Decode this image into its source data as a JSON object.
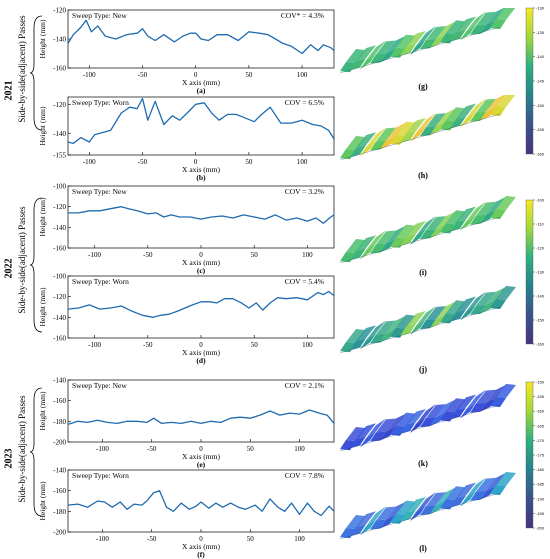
{
  "years": [
    "2021",
    "2022",
    "2023"
  ],
  "side_label": "Side-by-side(adjacent) Passes",
  "x_axis_label": "X axis (mm)",
  "y_axis_label": "Height (mm)",
  "panels": [
    {
      "year": "2021",
      "label": "(a)",
      "sweep": "Sweep Type: New",
      "cov": "COV* = 4.3%",
      "ylim": [
        -160,
        -120
      ],
      "yticks": [
        -120,
        -140,
        -160
      ],
      "xlim": [
        -120,
        130
      ],
      "xticks": [
        -100,
        -50,
        0,
        50,
        100
      ],
      "x": [
        -125,
        -115,
        -108,
        -103,
        -98,
        -92,
        -85,
        -75,
        -65,
        -55,
        -50,
        -45,
        -38,
        -30,
        -20,
        -12,
        -5,
        0,
        5,
        12,
        20,
        30,
        40,
        50,
        60,
        68,
        75,
        82,
        90,
        100,
        108,
        115,
        120,
        127,
        132
      ],
      "y": [
        -143,
        -137,
        -132,
        -127,
        -135,
        -131,
        -138,
        -140,
        -137,
        -136,
        -133,
        -138,
        -141,
        -137,
        -142,
        -138,
        -136,
        -136,
        -140,
        -141,
        -137,
        -137,
        -141,
        -135,
        -136,
        -137,
        -140,
        -143,
        -145,
        -150,
        -144,
        -148,
        -144,
        -146,
        -148
      ]
    },
    {
      "year": "2021",
      "label": "(b)",
      "sweep": "Sweep Type: Worn",
      "cov": "COV = 6.5%",
      "ylim": [
        -155,
        -115
      ],
      "yticks": [
        -120,
        -140,
        -155
      ],
      "xlim": [
        -120,
        130
      ],
      "xticks": [
        -100,
        -50,
        0,
        50,
        100
      ],
      "x": [
        -125,
        -115,
        -108,
        -100,
        -95,
        -90,
        -80,
        -70,
        -62,
        -55,
        -50,
        -45,
        -38,
        -30,
        -22,
        -15,
        -8,
        0,
        8,
        15,
        22,
        30,
        38,
        45,
        55,
        62,
        70,
        80,
        90,
        100,
        110,
        118,
        125,
        132
      ],
      "y": [
        -146,
        -147,
        -143,
        -146,
        -141,
        -140,
        -138,
        -126,
        -122,
        -123,
        -116,
        -131,
        -118,
        -134,
        -128,
        -131,
        -126,
        -120,
        -119,
        -126,
        -131,
        -127,
        -127,
        -129,
        -132,
        -127,
        -122,
        -133,
        -133,
        -131,
        -134,
        -135,
        -138,
        -144
      ]
    },
    {
      "year": "2022",
      "label": "(c)",
      "sweep": "Sweep Type: New",
      "cov": "COV = 3.2%",
      "ylim": [
        -160,
        -100
      ],
      "yticks": [
        -100,
        -120,
        -140,
        -160
      ],
      "xlim": [
        -125,
        125
      ],
      "xticks": [
        -100,
        -50,
        0,
        50,
        100
      ],
      "x": [
        -125,
        -115,
        -105,
        -95,
        -85,
        -75,
        -68,
        -60,
        -50,
        -42,
        -35,
        -28,
        -20,
        -10,
        0,
        10,
        20,
        30,
        40,
        50,
        60,
        70,
        80,
        90,
        100,
        108,
        115,
        122,
        125
      ],
      "y": [
        -126,
        -126,
        -124,
        -124,
        -122,
        -120,
        -122,
        -124,
        -127,
        -126,
        -130,
        -128,
        -130,
        -130,
        -132,
        -130,
        -129,
        -131,
        -128,
        -130,
        -132,
        -128,
        -133,
        -131,
        -134,
        -131,
        -136,
        -130,
        -128
      ]
    },
    {
      "year": "2022",
      "label": "(d)",
      "sweep": "Sweep Type: Worn",
      "cov": "COV = 5.4%",
      "ylim": [
        -160,
        -100
      ],
      "yticks": [
        -100,
        -120,
        -140,
        -160
      ],
      "xlim": [
        -125,
        125
      ],
      "xticks": [
        -100,
        -50,
        0,
        50,
        100
      ],
      "x": [
        -125,
        -115,
        -105,
        -95,
        -85,
        -75,
        -65,
        -55,
        -45,
        -38,
        -30,
        -22,
        -15,
        -8,
        0,
        8,
        15,
        22,
        30,
        38,
        45,
        52,
        58,
        65,
        72,
        80,
        90,
        100,
        110,
        115,
        120,
        125
      ],
      "y": [
        -132,
        -131,
        -128,
        -132,
        -131,
        -129,
        -134,
        -138,
        -140,
        -138,
        -137,
        -134,
        -131,
        -128,
        -125,
        -125,
        -126,
        -122,
        -122,
        -126,
        -131,
        -126,
        -133,
        -126,
        -121,
        -122,
        -121,
        -123,
        -116,
        -118,
        -115,
        -119
      ]
    },
    {
      "year": "2023",
      "label": "(e)",
      "sweep": "Sweep Type: New",
      "cov": "COV = 2.1%",
      "ylim": [
        -200,
        -140
      ],
      "yticks": [
        -140,
        -160,
        -180,
        -200
      ],
      "xlim": [
        -135,
        135
      ],
      "xticks": [
        -100,
        -50,
        0,
        50,
        100
      ],
      "x": [
        -135,
        -125,
        -115,
        -105,
        -95,
        -85,
        -75,
        -65,
        -55,
        -48,
        -40,
        -30,
        -20,
        -10,
        0,
        10,
        20,
        30,
        40,
        50,
        60,
        70,
        80,
        90,
        100,
        110,
        120,
        128,
        135
      ],
      "y": [
        -183,
        -180,
        -181,
        -179,
        -181,
        -182,
        -180,
        -180,
        -181,
        -177,
        -182,
        -181,
        -182,
        -180,
        -182,
        -180,
        -181,
        -177,
        -176,
        -177,
        -174,
        -170,
        -174,
        -172,
        -173,
        -169,
        -172,
        -174,
        -182
      ]
    },
    {
      "year": "2023",
      "label": "(f)",
      "sweep": "Sweep Type: Worn",
      "cov": "COV = 7.8%",
      "ylim": [
        -200,
        -140
      ],
      "yticks": [
        -140,
        -160,
        -180,
        -200
      ],
      "xlim": [
        -135,
        135
      ],
      "xticks": [
        -100,
        -50,
        0,
        50,
        100
      ],
      "x": [
        -135,
        -125,
        -115,
        -105,
        -98,
        -90,
        -82,
        -75,
        -68,
        -60,
        -55,
        -48,
        -42,
        -35,
        -28,
        -20,
        -12,
        -5,
        0,
        8,
        15,
        22,
        30,
        38,
        45,
        55,
        62,
        70,
        78,
        85,
        92,
        100,
        108,
        115,
        122,
        130,
        135
      ],
      "y": [
        -174,
        -173,
        -176,
        -170,
        -171,
        -176,
        -171,
        -178,
        -173,
        -174,
        -170,
        -162,
        -160,
        -176,
        -180,
        -172,
        -178,
        -175,
        -171,
        -177,
        -172,
        -176,
        -172,
        -176,
        -178,
        -174,
        -180,
        -168,
        -176,
        -180,
        -172,
        -183,
        -172,
        -180,
        -184,
        -175,
        -180
      ]
    }
  ],
  "surfaces": [
    {
      "label": "(g)",
      "palette": "g"
    },
    {
      "label": "(h)",
      "palette": "h"
    },
    {
      "label": "(i)",
      "palette": "i"
    },
    {
      "label": "(j)",
      "palette": "j"
    },
    {
      "label": "(k)",
      "palette": "k"
    },
    {
      "label": "(l)",
      "palette": "l"
    }
  ],
  "colorbars": [
    {
      "ticks": [
        "-130",
        "-135",
        "-140",
        "-145",
        "-150",
        "-155",
        "-160"
      ]
    },
    {
      "ticks": [
        "-100",
        "-110",
        "-120",
        "-130",
        "-140",
        "-150",
        "-160"
      ]
    },
    {
      "ticks": [
        "-150",
        "-155",
        "-160",
        "-165",
        "-170",
        "-175",
        "-180",
        "-185",
        "-190",
        "-195",
        "-200"
      ]
    }
  ],
  "colors": {
    "line": "#1f6bb0",
    "axis": "#000000"
  }
}
